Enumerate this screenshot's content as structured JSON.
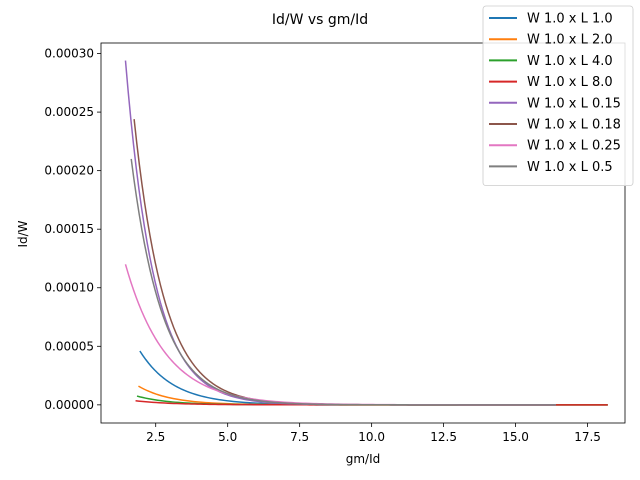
{
  "chart_data": {
    "type": "line",
    "title": "Id/W vs gm/Id",
    "xlabel": "gm/Id",
    "ylabel": "Id/W",
    "xlim": [
      0.6,
      18.8
    ],
    "ylim": [
      -1.55e-05,
      0.000309
    ],
    "xticks": [
      2.5,
      5.0,
      7.5,
      10.0,
      12.5,
      15.0,
      17.5
    ],
    "xtick_labels": [
      "2.5",
      "5.0",
      "7.5",
      "10.0",
      "12.5",
      "15.0",
      "17.5"
    ],
    "yticks": [
      0,
      5e-05,
      0.0001,
      0.00015,
      0.0002,
      0.00025,
      0.0003
    ],
    "ytick_labels": [
      "0.00000",
      "0.00005",
      "0.00010",
      "0.00015",
      "0.00020",
      "0.00025",
      "0.00030"
    ],
    "grid": false,
    "legend_position": "top-right",
    "series": [
      {
        "name": "W 1.0 x L 1.0",
        "color": "#1f77b4",
        "x_start": 1.95,
        "x_end": 18.2,
        "y_start": 4.6e-05,
        "decay": 0.85
      },
      {
        "name": "W 1.0 x L 2.0",
        "color": "#ff7f0e",
        "x_start": 1.9,
        "x_end": 18.2,
        "y_start": 1.6e-05,
        "decay": 0.9
      },
      {
        "name": "W 1.0 x L 4.0",
        "color": "#2ca02c",
        "x_start": 1.85,
        "x_end": 18.2,
        "y_start": 7.5e-06,
        "decay": 0.9
      },
      {
        "name": "W 1.0 x L 8.0",
        "color": "#d62728",
        "x_start": 1.8,
        "x_end": 18.2,
        "y_start": 3.5e-06,
        "decay": 0.8
      },
      {
        "name": "W 1.0 x L 0.15",
        "color": "#9467bd",
        "x_start": 1.45,
        "x_end": 16.4,
        "y_start": 0.000294,
        "decay": 1.0
      },
      {
        "name": "W 1.0 x L 0.18",
        "color": "#8c564b",
        "x_start": 1.75,
        "x_end": 16.4,
        "y_start": 0.000244,
        "decay": 0.95
      },
      {
        "name": "W 1.0 x L 0.25",
        "color": "#e377c2",
        "x_start": 1.45,
        "x_end": 16.4,
        "y_start": 0.00012,
        "decay": 0.72
      },
      {
        "name": "W 1.0 x L 0.5",
        "color": "#7f7f7f",
        "x_start": 1.65,
        "x_end": 16.4,
        "y_start": 0.00021,
        "decay": 0.92
      }
    ]
  }
}
